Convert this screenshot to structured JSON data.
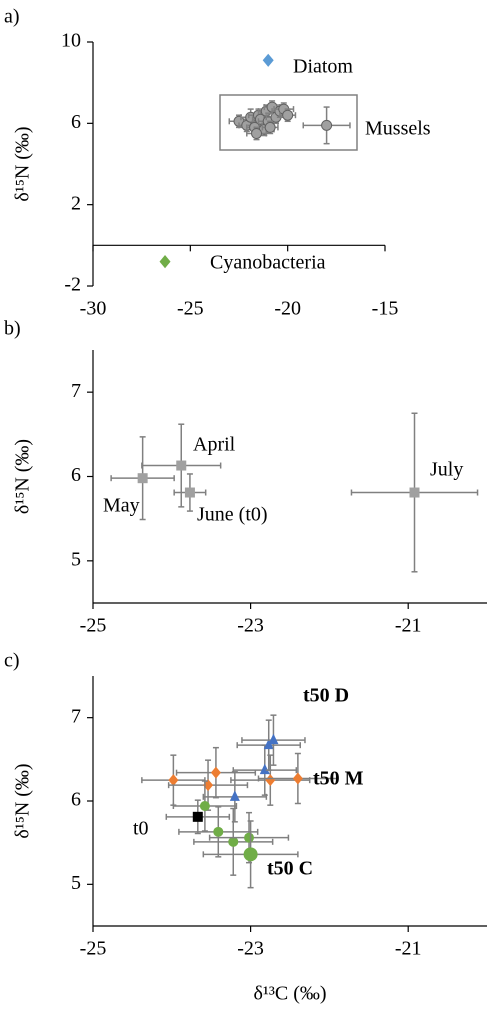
{
  "chart_data": [
    {
      "type": "scatter",
      "label": "a)",
      "ylabel": "δ¹⁵N (‰)",
      "xlim": [
        -30,
        -15
      ],
      "ylim": [
        -2,
        10
      ],
      "xticks": [
        -30,
        -25,
        -20,
        -15
      ],
      "yticks": [
        -2,
        2,
        6,
        10
      ],
      "x_axis_at": 0,
      "series": [
        {
          "name": "Diatom",
          "color": "#5b9bd5",
          "label_color": "#5b9bd5",
          "marker": "diamond",
          "x": [
            -21.0
          ],
          "values": [
            9.1
          ]
        },
        {
          "name": "Mussels",
          "color": "#a0a0a0",
          "label_color": "#000000",
          "marker": "circle",
          "x": [
            -22.5,
            -22.1,
            -21.9,
            -21.7,
            -21.5,
            -21.4,
            -21.2,
            -21.1,
            -21.0,
            -20.8,
            -20.6,
            -20.4,
            -20.2,
            -20.0,
            -21.6,
            -20.9,
            -18.0
          ],
          "values": [
            6.1,
            5.9,
            6.3,
            5.8,
            6.4,
            6.2,
            5.7,
            6.6,
            6.1,
            6.8,
            6.3,
            6.6,
            6.7,
            6.4,
            5.5,
            5.8,
            5.9
          ],
          "x_error": [
            0.5,
            0.4,
            0.5,
            0.4,
            0.5,
            0.4,
            0.5,
            0.4,
            0.5,
            0.4,
            0.5,
            0.4,
            0.5,
            0.4,
            0.5,
            0.4,
            1.2
          ],
          "y_error": [
            0.3,
            0.3,
            0.4,
            0.3,
            0.3,
            0.4,
            0.3,
            0.3,
            0.4,
            0.3,
            0.3,
            0.3,
            0.3,
            0.3,
            0.3,
            0.3,
            0.9
          ]
        },
        {
          "name": "Cyanobacteria",
          "color": "#70ad47",
          "label_color": "#70ad47",
          "marker": "diamond",
          "x": [
            -26.3
          ],
          "values": [
            -0.8
          ]
        }
      ]
    },
    {
      "type": "scatter",
      "label": "b)",
      "ylabel": "δ¹⁵N (‰)",
      "xlim": [
        -25,
        -20
      ],
      "ylim": [
        4.5,
        7.5
      ],
      "xticks": [
        -25,
        -23,
        -21
      ],
      "yticks": [
        5,
        6,
        7
      ],
      "series": [
        {
          "color": "#a0a0a0",
          "marker": "square",
          "point_labels": [
            "May",
            "April",
            "June (t0)",
            "July"
          ],
          "x": [
            -24.37,
            -23.88,
            -23.77,
            -20.92
          ],
          "values": [
            5.98,
            6.13,
            5.81,
            5.81
          ],
          "x_error": [
            0.4,
            0.5,
            0.2,
            0.8
          ],
          "y_error": [
            0.49,
            0.49,
            0.22,
            0.94
          ]
        }
      ]
    },
    {
      "type": "scatter",
      "label": "c)",
      "ylabel": "δ¹⁵N (‰)",
      "xlabel": "δ¹³C (‰)",
      "xlim": [
        -25,
        -20
      ],
      "ylim": [
        4.5,
        7.5
      ],
      "xticks": [
        -25,
        -23,
        -21
      ],
      "yticks": [
        5,
        6,
        7
      ],
      "series": [
        {
          "name": "t50 D",
          "color": "#4472c4",
          "label_color": "#4472c4",
          "marker": "triangle",
          "x": [
            -23.2,
            -22.82,
            -22.77,
            -22.71
          ],
          "values": [
            6.05,
            6.37,
            6.67,
            6.73
          ],
          "x_error": [
            0.4,
            0.4,
            0.4,
            0.4
          ],
          "y_error": [
            0.3,
            0.3,
            0.3,
            0.3
          ]
        },
        {
          "name": "t50 M",
          "color": "#ed7d31",
          "label_color": "#ed7d31",
          "marker": "diamond",
          "x": [
            -23.98,
            -23.54,
            -23.44,
            -22.75,
            -22.4
          ],
          "values": [
            6.25,
            6.19,
            6.34,
            6.25,
            6.27
          ],
          "x_error": [
            0.4,
            0.5,
            0.5,
            0.5,
            0.5
          ],
          "y_error": [
            0.3,
            0.3,
            0.3,
            0.3,
            0.3
          ]
        },
        {
          "name": "t50 C",
          "color": "#70ad47",
          "label_color": "#70ad47",
          "marker": "circle",
          "x": [
            -23.58,
            -23.41,
            -23.22,
            -23.02,
            -23.0
          ],
          "values": [
            5.94,
            5.63,
            5.51,
            5.56,
            5.36
          ],
          "x_error": [
            0.4,
            0.5,
            0.5,
            0.5,
            0.6
          ],
          "y_error": [
            0.3,
            0.3,
            0.4,
            0.3,
            0.4
          ]
        },
        {
          "name": "t0",
          "color": "#000000",
          "label_color": "#000000",
          "marker": "square",
          "x": [
            -23.67
          ],
          "values": [
            5.81
          ],
          "x_error": [
            0.4
          ],
          "y_error": [
            0.2
          ]
        }
      ]
    }
  ]
}
